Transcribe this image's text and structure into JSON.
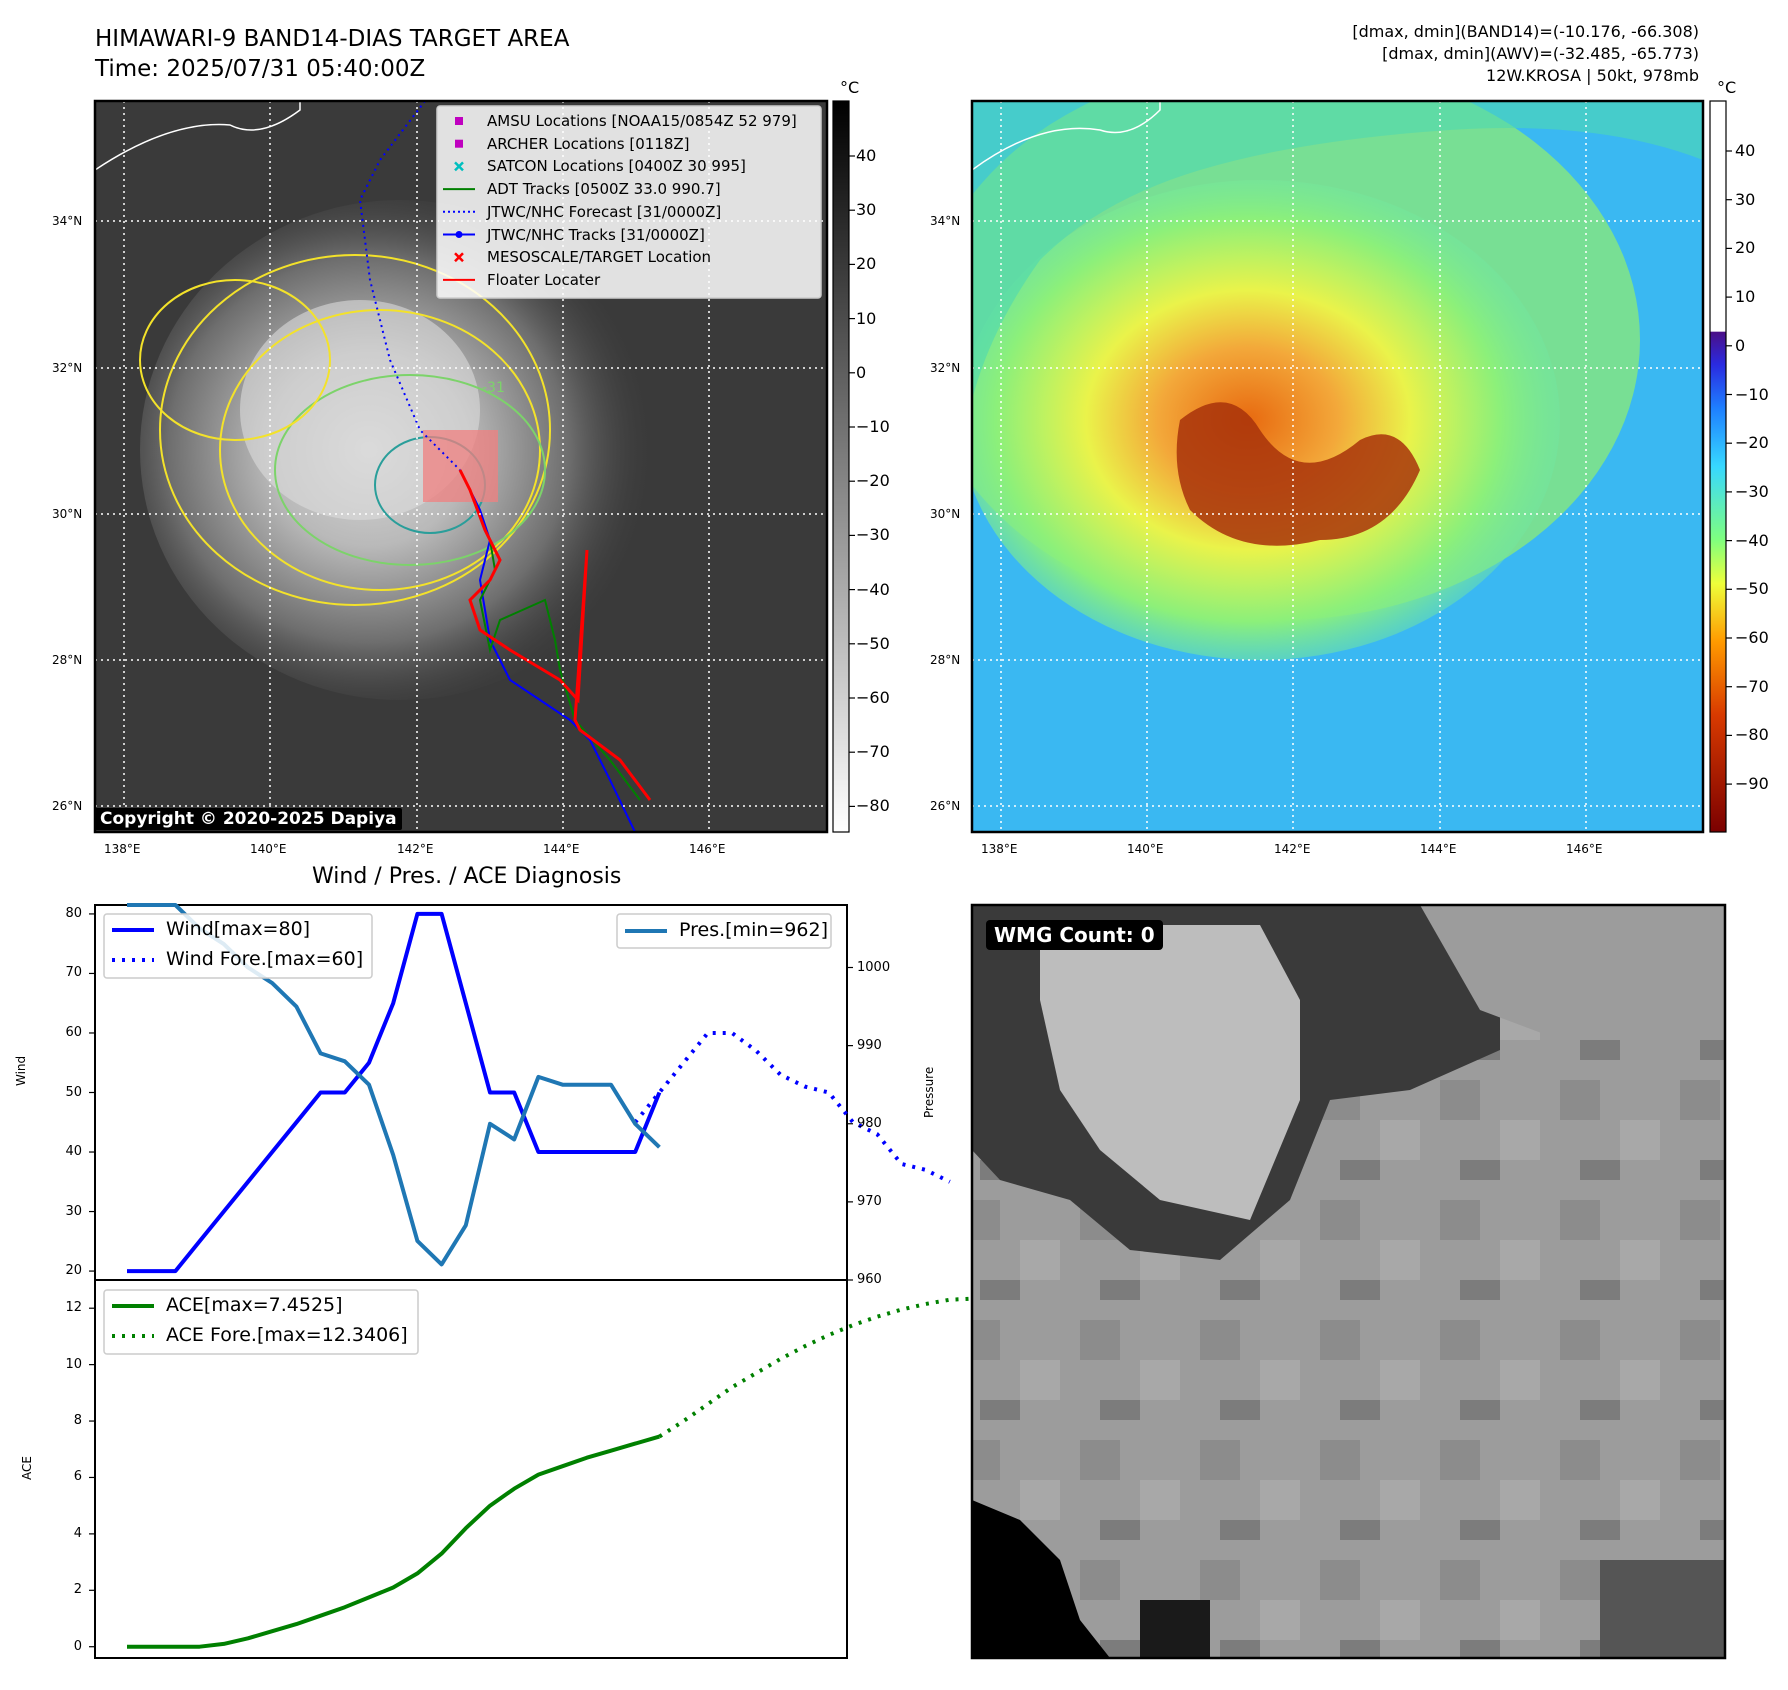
{
  "header": {
    "title_line1": "HIMAWARI-9 BAND14-DIAS TARGET AREA",
    "title_line2": "Time: 2025/07/31 05:40:00Z",
    "stats_line1": "[dmax, dmin](BAND14)=(-10.176, -66.308)",
    "stats_line2": "[dmax, dmin](AWV)=(-32.485, -65.773)",
    "stats_line3": "12W.KROSA | 50kt, 978mb"
  },
  "map_left": {
    "lat_labels": [
      "34°N",
      "32°N",
      "30°N",
      "28°N",
      "26°N"
    ],
    "lon_labels": [
      "138°E",
      "140°E",
      "142°E",
      "144°E",
      "146°E"
    ],
    "colorbar_unit": "°C",
    "colorbar_ticks": [
      "40",
      "30",
      "20",
      "10",
      "0",
      "−10",
      "−20",
      "−30",
      "−40",
      "−50",
      "−60",
      "−70",
      "−80"
    ],
    "copyright": "Copyright © 2020-2025 Dapiya",
    "contour_label": "-31",
    "legend": [
      {
        "label": "AMSU Locations [NOAA15/0854Z 52 979]",
        "color": "#bf00bf",
        "marker": "square"
      },
      {
        "label": "ARCHER Locations [0118Z]",
        "color": "#bf00bf",
        "marker": "square"
      },
      {
        "label": "SATCON Locations [0400Z 30 995]",
        "color": "#00bfbf",
        "marker": "x"
      },
      {
        "label": "ADT Tracks [0500Z 33.0 990.7]",
        "color": "#008000",
        "marker": "line"
      },
      {
        "label": "JTWC/NHC Forecast [31/0000Z]",
        "color": "#0000ff",
        "marker": "dotted"
      },
      {
        "label": "JTWC/NHC Tracks [31/0000Z]",
        "color": "#0000ff",
        "marker": "line-dot"
      },
      {
        "label": "MESOSCALE/TARGET Location",
        "color": "#ff0000",
        "marker": "x"
      },
      {
        "label": "Floater Locater",
        "color": "#ff0000",
        "marker": "line"
      }
    ]
  },
  "map_right": {
    "lat_labels": [
      "34°N",
      "32°N",
      "30°N",
      "28°N",
      "26°N"
    ],
    "lon_labels": [
      "138°E",
      "140°E",
      "142°E",
      "144°E",
      "146°E"
    ],
    "colorbar_unit": "°C",
    "colorbar_ticks": [
      "40",
      "30",
      "20",
      "10",
      "0",
      "−10",
      "−20",
      "−30",
      "−40",
      "−50",
      "−60",
      "−70",
      "−80",
      "−90"
    ]
  },
  "wmg": {
    "badge": "WMG Count: 0"
  },
  "chart_data": [
    {
      "type": "line",
      "title": "Wind / Pres. / ACE Diagnosis",
      "ylabel": "Wind",
      "y2label": "Pressure",
      "ylim": [
        18.5,
        81.5
      ],
      "y2lim": [
        960,
        1008
      ],
      "yticks": [
        20,
        30,
        40,
        50,
        60,
        70,
        80
      ],
      "y2ticks": [
        960,
        970,
        980,
        990,
        1000
      ],
      "series": [
        {
          "name": "Wind[max=80]",
          "style": "solid",
          "color": "#0000ff",
          "x": [
            0,
            2,
            3,
            4,
            5,
            6,
            7,
            8,
            9,
            10,
            11,
            12,
            13,
            14,
            15,
            16,
            17,
            18,
            19,
            20,
            21,
            22
          ],
          "values": [
            20,
            20,
            25,
            30,
            35,
            40,
            45,
            50,
            50,
            55,
            65,
            80,
            80,
            65,
            50,
            50,
            40,
            40,
            40,
            40,
            40,
            50
          ]
        },
        {
          "name": "Wind Fore.[max=60]",
          "style": "dotted",
          "color": "#0000ff",
          "x": [
            21,
            22,
            23,
            24,
            25,
            26,
            27,
            28,
            29,
            30,
            31,
            32,
            33,
            34
          ],
          "values": [
            45,
            50,
            55,
            60,
            60,
            57,
            53,
            51,
            50,
            45,
            43,
            38,
            37,
            35
          ]
        },
        {
          "name": "Pres.[min=962]",
          "style": "solid",
          "color": "#1f77b4",
          "axis": "right",
          "x": [
            0,
            2,
            3,
            4,
            5,
            6,
            7,
            8,
            9,
            10,
            11,
            12,
            13,
            14,
            15,
            16,
            17,
            18,
            19,
            20,
            21,
            22
          ],
          "values": [
            1008,
            1008,
            1005,
            1003,
            1000,
            998,
            995,
            989,
            988,
            985,
            976,
            965,
            962,
            967,
            980,
            978,
            986,
            985,
            985,
            985,
            980,
            977
          ]
        }
      ]
    },
    {
      "type": "line",
      "ylabel": "ACE",
      "ylim": [
        -0.4,
        13
      ],
      "yticks": [
        0,
        2,
        4,
        6,
        8,
        10,
        12
      ],
      "series": [
        {
          "name": "ACE[max=7.4525]",
          "style": "solid",
          "color": "#008000",
          "x": [
            0,
            3,
            4,
            5,
            6,
            7,
            8,
            9,
            10,
            11,
            12,
            13,
            14,
            15,
            16,
            17,
            18,
            19,
            20,
            21,
            22
          ],
          "values": [
            0,
            0,
            0.1,
            0.3,
            0.55,
            0.8,
            1.1,
            1.4,
            1.75,
            2.1,
            2.6,
            3.3,
            4.2,
            5.0,
            5.6,
            6.1,
            6.4,
            6.7,
            6.95,
            7.2,
            7.45
          ]
        },
        {
          "name": "ACE Fore.[max=12.3406]",
          "style": "dotted",
          "color": "#008000",
          "x": [
            22,
            23,
            24,
            25,
            26,
            27,
            28,
            29,
            30,
            31,
            32,
            33,
            34,
            35
          ],
          "values": [
            7.45,
            8.0,
            8.6,
            9.2,
            9.7,
            10.2,
            10.65,
            11.05,
            11.4,
            11.7,
            11.95,
            12.15,
            12.3,
            12.34
          ]
        }
      ]
    }
  ]
}
